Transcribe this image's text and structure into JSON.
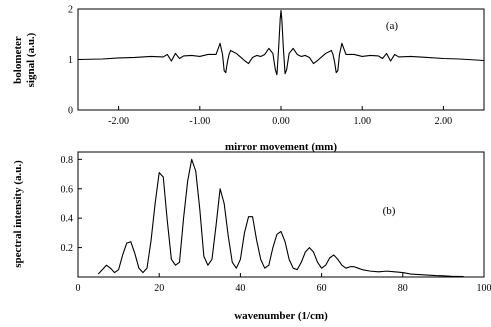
{
  "chart_data": [
    {
      "type": "line",
      "panel_label": "(a)",
      "xlabel": "mirror movement (mm)",
      "ylabel_lines": [
        "bolometer",
        "signal (a.u.)"
      ],
      "xlim": [
        -2.5,
        2.5
      ],
      "ylim": [
        0,
        2
      ],
      "xticks": [
        -2.0,
        -1.0,
        0.0,
        1.0,
        2.0
      ],
      "xtick_labels": [
        "-2.00",
        "-1.00",
        "0.00",
        "1.00",
        "2.00"
      ],
      "yticks": [
        0,
        1,
        2
      ],
      "ytick_labels": [
        "0",
        "1",
        "2"
      ],
      "series": [
        {
          "x": [
            -2.5,
            -2.2,
            -2.0,
            -1.8,
            -1.6,
            -1.45,
            -1.4,
            -1.35,
            -1.3,
            -1.25,
            -1.2,
            -1.1,
            -1.0,
            -0.9,
            -0.8,
            -0.75,
            -0.72,
            -0.7,
            -0.68,
            -0.66,
            -0.64,
            -0.62,
            -0.6,
            -0.55,
            -0.5,
            -0.45,
            -0.4,
            -0.35,
            -0.3,
            -0.25,
            -0.2,
            -0.15,
            -0.1,
            -0.07,
            -0.05,
            -0.03,
            -0.01,
            0.0,
            0.01,
            0.03,
            0.05,
            0.07,
            0.1,
            0.15,
            0.2,
            0.25,
            0.3,
            0.35,
            0.4,
            0.45,
            0.5,
            0.55,
            0.6,
            0.62,
            0.64,
            0.66,
            0.68,
            0.7,
            0.72,
            0.75,
            0.8,
            0.9,
            1.0,
            1.1,
            1.2,
            1.25,
            1.3,
            1.35,
            1.4,
            1.45,
            1.6,
            1.8,
            2.0,
            2.2,
            2.5
          ],
          "y": [
            1.0,
            1.01,
            1.03,
            1.04,
            1.06,
            1.05,
            1.1,
            0.97,
            1.12,
            1.02,
            1.07,
            1.08,
            1.06,
            1.1,
            1.1,
            1.32,
            1.1,
            0.78,
            0.74,
            0.95,
            1.1,
            1.18,
            1.16,
            1.12,
            1.05,
            0.98,
            0.92,
            1.04,
            1.08,
            1.06,
            1.1,
            1.22,
            1.12,
            0.8,
            0.7,
            1.2,
            1.8,
            1.97,
            1.8,
            1.2,
            0.72,
            0.8,
            1.12,
            1.22,
            1.1,
            1.06,
            1.08,
            1.04,
            0.92,
            0.98,
            1.05,
            1.12,
            1.16,
            1.18,
            1.1,
            0.95,
            0.74,
            0.78,
            1.1,
            1.32,
            1.1,
            1.1,
            1.06,
            1.08,
            1.07,
            1.02,
            1.12,
            0.97,
            1.1,
            1.05,
            1.06,
            1.04,
            1.02,
            1.01,
            0.98
          ]
        }
      ]
    },
    {
      "type": "line",
      "panel_label": "(b)",
      "xlabel": "wavenumber (1/cm)",
      "ylabel_lines": [
        "spectral intensity (a.u.)"
      ],
      "xlim": [
        0,
        100
      ],
      "ylim": [
        0,
        0.85
      ],
      "xticks": [
        0,
        20,
        40,
        60,
        80,
        100
      ],
      "xtick_labels": [
        "0",
        "20",
        "40",
        "60",
        "80",
        "100"
      ],
      "yticks": [
        0.2,
        0.4,
        0.6,
        0.8
      ],
      "ytick_labels": [
        "0.2",
        "0.4",
        "0.6",
        "0.8"
      ],
      "series": [
        {
          "x": [
            5,
            6,
            7,
            8,
            9,
            10,
            11,
            12,
            13,
            14,
            15,
            16,
            17,
            18,
            19,
            20,
            21,
            22,
            23,
            24,
            25,
            26,
            27,
            28,
            29,
            30,
            31,
            32,
            33,
            34,
            35,
            36,
            37,
            38,
            39,
            40,
            41,
            42,
            43,
            44,
            45,
            46,
            47,
            48,
            49,
            50,
            51,
            52,
            53,
            54,
            55,
            56,
            57,
            58,
            59,
            60,
            61,
            62,
            63,
            64,
            65,
            66,
            67,
            68,
            69,
            70,
            72,
            74,
            76,
            78,
            80,
            82,
            85,
            88,
            90,
            92,
            95
          ],
          "y": [
            0.02,
            0.05,
            0.08,
            0.06,
            0.03,
            0.05,
            0.15,
            0.23,
            0.24,
            0.16,
            0.06,
            0.03,
            0.06,
            0.25,
            0.5,
            0.71,
            0.68,
            0.38,
            0.12,
            0.08,
            0.1,
            0.4,
            0.65,
            0.8,
            0.72,
            0.46,
            0.14,
            0.08,
            0.12,
            0.35,
            0.6,
            0.5,
            0.28,
            0.1,
            0.06,
            0.12,
            0.3,
            0.41,
            0.41,
            0.25,
            0.12,
            0.06,
            0.08,
            0.2,
            0.29,
            0.31,
            0.24,
            0.12,
            0.06,
            0.05,
            0.1,
            0.17,
            0.2,
            0.17,
            0.1,
            0.06,
            0.08,
            0.13,
            0.15,
            0.12,
            0.08,
            0.06,
            0.07,
            0.07,
            0.06,
            0.05,
            0.04,
            0.035,
            0.04,
            0.035,
            0.03,
            0.02,
            0.015,
            0.01,
            0.008,
            0.005,
            0.003
          ]
        }
      ]
    }
  ]
}
